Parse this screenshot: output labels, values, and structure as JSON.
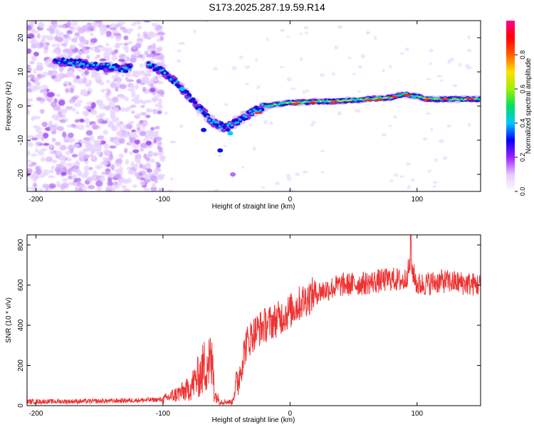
{
  "figure": {
    "title": "S173.2025.287.19.59.R14"
  },
  "chart_data": [
    {
      "type": "heatmap",
      "xlabel": "Height of straight line (km)",
      "ylabel": "Frequency (Hz)",
      "xlim": [
        -207,
        150
      ],
      "ylim": [
        -25,
        25
      ],
      "xticks": [
        -200,
        -100,
        0,
        100
      ],
      "yticks": [
        -20,
        -10,
        0,
        10,
        20
      ],
      "colorbar": {
        "label": "Normalized spectral amplitude",
        "range": [
          0.0,
          1.0
        ],
        "ticks": [
          "0.0",
          "0.2",
          "0.4",
          "0.6",
          "0.8"
        ],
        "tick_values": [
          0.0,
          0.2,
          0.4,
          0.6,
          0.8
        ],
        "colors": [
          "#ffffff",
          "#e6c9ff",
          "#a020ff",
          "#0000ff",
          "#00c8ff",
          "#00e060",
          "#a0f000",
          "#ffe000",
          "#ff6000",
          "#ff0000",
          "#ff0090"
        ]
      },
      "ridge": [
        {
          "x": -180,
          "y": 13.0
        },
        {
          "x": -165,
          "y": 12.5
        },
        {
          "x": -150,
          "y": 11.5
        },
        {
          "x": -130,
          "y": 11.0
        },
        {
          "x": -110,
          "y": 12.0
        },
        {
          "x": -100,
          "y": 10.0
        },
        {
          "x": -90,
          "y": 7.0
        },
        {
          "x": -80,
          "y": 3.0
        },
        {
          "x": -70,
          "y": -1.0
        },
        {
          "x": -60,
          "y": -5.0
        },
        {
          "x": -50,
          "y": -6.5
        },
        {
          "x": -40,
          "y": -4.0
        },
        {
          "x": -30,
          "y": -2.0
        },
        {
          "x": -20,
          "y": 0.0
        },
        {
          "x": 0,
          "y": 1.0
        },
        {
          "x": 40,
          "y": 1.5
        },
        {
          "x": 80,
          "y": 2.5
        },
        {
          "x": 90,
          "y": 3.5
        },
        {
          "x": 110,
          "y": 2.0
        },
        {
          "x": 150,
          "y": 2.0
        }
      ]
    },
    {
      "type": "line",
      "xlabel": "Height of straight line (km)",
      "ylabel": "SNR (10 * v/v)",
      "xlim": [
        -207,
        150
      ],
      "ylim": [
        0,
        850
      ],
      "xticks": [
        -200,
        -100,
        0,
        100
      ],
      "yticks": [
        0,
        200,
        400,
        600,
        800
      ],
      "series": [
        {
          "name": "SNR",
          "color": "#ee3333",
          "x": [
            -207,
            -150,
            -100,
            -80,
            -70,
            -65,
            -60,
            -55,
            -45,
            -40,
            -35,
            -30,
            -25,
            -20,
            -10,
            0,
            10,
            20,
            30,
            40,
            60,
            80,
            90,
            95,
            100,
            120,
            150
          ],
          "y": [
            20,
            22,
            30,
            80,
            160,
            230,
            180,
            60,
            50,
            150,
            300,
            350,
            380,
            400,
            430,
            470,
            520,
            560,
            580,
            600,
            610,
            630,
            620,
            700,
            600,
            620,
            600
          ]
        }
      ]
    }
  ]
}
